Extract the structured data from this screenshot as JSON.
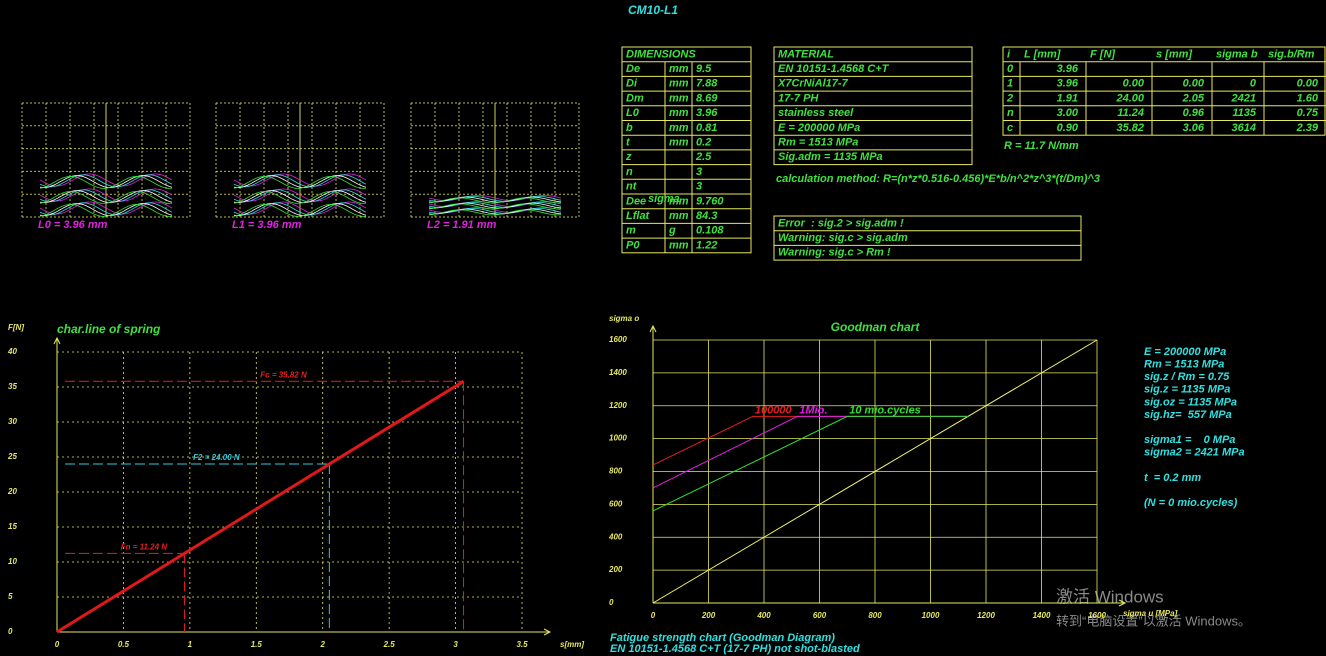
{
  "header": {
    "title": "CM10-L1"
  },
  "springs": [
    {
      "label": "L0 = 3.96 mm"
    },
    {
      "label": "L1 = 3.96 mm"
    },
    {
      "label": "L2 = 1.91 mm"
    }
  ],
  "dimensions": {
    "header": "DIMENSIONS",
    "overlay": "sigma",
    "rows": [
      [
        "De",
        "mm",
        "9.5"
      ],
      [
        "Di",
        "mm",
        "7.88"
      ],
      [
        "Dm",
        "mm",
        "8.69"
      ],
      [
        "L0",
        "mm",
        "3.96"
      ],
      [
        "b",
        "mm",
        "0.81"
      ],
      [
        "t",
        "mm",
        "0.2"
      ],
      [
        "z",
        null,
        "2.5"
      ],
      [
        "n",
        null,
        "3"
      ],
      [
        "nt",
        null,
        "3"
      ],
      [
        "Dee",
        "mm",
        "9.760"
      ],
      [
        "Lflat",
        "mm",
        "84.3"
      ],
      [
        "m",
        "g",
        "0.108"
      ],
      [
        "P0",
        "mm",
        "1.22"
      ]
    ]
  },
  "material": {
    "header": "MATERIAL",
    "rows": [
      "EN 10151-1.4568 C+T",
      "X7CrNiAl17-7",
      "17-7 PH",
      "stainless steel",
      "E = 200000 MPa",
      "Rm = 1513 MPa",
      "Sig.adm = 1135 MPa"
    ]
  },
  "results": {
    "columns": [
      "i",
      "L [mm]",
      "F [N]",
      "s [mm]",
      "sigma b",
      "sig.b/Rm"
    ],
    "rows": [
      [
        "0",
        "3.96",
        null,
        null,
        null,
        null
      ],
      [
        "1",
        "3.96",
        "0.00",
        "0.00",
        "0",
        "0.00"
      ],
      [
        "2",
        "1.91",
        "24.00",
        "2.05",
        "2421",
        "1.60"
      ],
      [
        "n",
        "3.00",
        "11.24",
        "0.96",
        "1135",
        "0.75"
      ],
      [
        "c",
        "0.90",
        "35.82",
        "3.06",
        "3614",
        "2.39"
      ]
    ],
    "rate": "R = 11.7 N/mm"
  },
  "method": "calculation method: R=(n*z*0.516-0.456)*E*b/n^2*z^3*(t/Dm)^3",
  "warnings": [
    "Error  : sig.2 > sig.adm !",
    "Warning: sig.c > sig.adm",
    "Warning: sig.c > Rm !"
  ],
  "chart_data": [
    {
      "type": "line",
      "title": "char.line of spring",
      "ylabel": "F[N]",
      "xlabel": "s[mm]",
      "xlim": [
        0,
        3.5
      ],
      "ylim": [
        0,
        40
      ],
      "xticks": [
        0,
        0.5,
        1,
        1.5,
        2,
        2.5,
        3,
        3.5
      ],
      "yticks": [
        0,
        5,
        10,
        15,
        20,
        25,
        30,
        35,
        40
      ],
      "grid": true,
      "grid_style": "dotted",
      "series": [
        {
          "color": "#e01818",
          "x": [
            0,
            3.06
          ],
          "values": [
            0,
            35.82
          ]
        }
      ],
      "reference_lines": [
        {
          "label": "Fn = 11.24 N",
          "x": 0.96,
          "y": 11.24,
          "color": "#e02020"
        },
        {
          "label": "F2 = 24.00 N",
          "x": 2.05,
          "y": 24.0,
          "color": "#30c8e0"
        },
        {
          "label": "Fc = 35.82 N",
          "x": 3.06,
          "y": 35.82,
          "color": "#e02020"
        }
      ]
    },
    {
      "type": "line",
      "title": "Goodman chart",
      "ylabel": "sigma o",
      "xlabel": "sigma u [MPa]",
      "xlim": [
        0,
        1600
      ],
      "ylim": [
        0,
        1600
      ],
      "xticks": [
        0,
        200,
        400,
        600,
        800,
        1000,
        1200,
        1400,
        1600
      ],
      "yticks": [
        0,
        200,
        400,
        600,
        800,
        1000,
        1200,
        1400,
        1600
      ],
      "grid": true,
      "grid_style": "solid",
      "series": [
        {
          "color": "#f0f070",
          "x": [
            0,
            1600
          ],
          "values": [
            0,
            1600
          ]
        },
        {
          "name": "100000",
          "color": "#e02020",
          "x": [
            0,
            360,
            1135
          ],
          "values": [
            840,
            1135,
            1135
          ]
        },
        {
          "name": "1Mio.",
          "color": "#e020e0",
          "x": [
            0,
            520,
            1135
          ],
          "values": [
            700,
            1135,
            1135
          ]
        },
        {
          "name": "10 mio.cycles",
          "color": "#30e030",
          "x": [
            0,
            700,
            1135
          ],
          "values": [
            560,
            1135,
            1135
          ]
        }
      ],
      "info": [
        [
          "E = 200000 MPa",
          "Rm = 1513 MPa",
          "sig.z / Rm = 0.75",
          "sig.z = 1135 MPa",
          "sig.oz = 1135 MPa",
          "sig.hz=  557 MPa"
        ],
        [
          "sigma1 =    0 MPa",
          "sigma2 = 2421 MPa"
        ],
        [
          "t  = 0.2 mm"
        ],
        [
          "(N = 0 mio.cycles)"
        ]
      ],
      "footer": [
        "Fatigue strength chart (Goodman Diagram)",
        "EN 10151-1.4568 C+T (17-7 PH) not shot-blasted"
      ]
    }
  ],
  "watermark": [
    "激活 Windows",
    "转到“电脑设置”以激活 Windows。"
  ]
}
